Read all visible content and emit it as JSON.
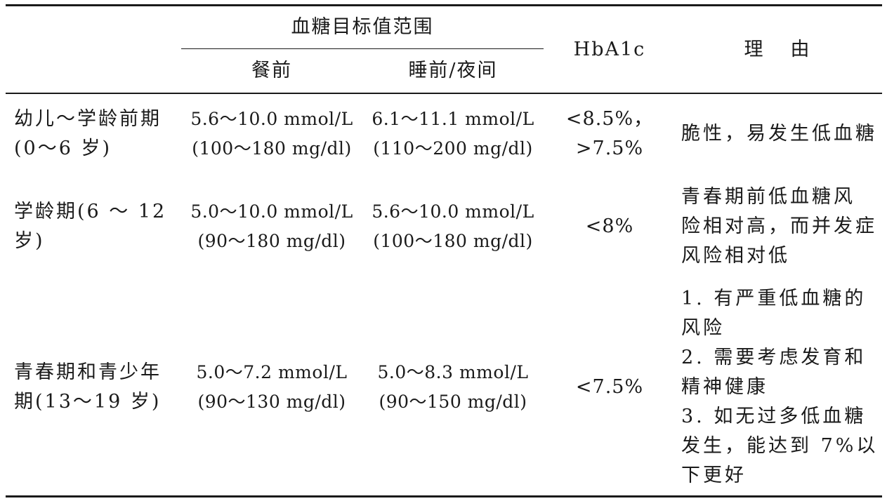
{
  "table": {
    "header": {
      "group_label": "血糖目标值范围",
      "before_meal": "餐前",
      "bedtime_night": "睡前/夜间",
      "hba1c": "HbA1c",
      "reason": "理　由"
    },
    "rows": [
      {
        "age_line1": "幼儿～学龄前期",
        "age_line2": "(0～6 岁)",
        "before_meal_line1": "5.6～10.0 mmol/L",
        "before_meal_line2": "(100～180 mg/dl)",
        "bedtime_line1": "6.1～11.1 mmol/L",
        "bedtime_line2": "(110～200 mg/dl)",
        "hba1c_line1": "<8.5%，",
        "hba1c_line2": ">7.5%",
        "reason_lines": [
          "脆性，易发生低血糖"
        ]
      },
      {
        "age_line1": "学龄期(6 ～ 12",
        "age_line2": "岁)",
        "before_meal_line1": "5.0～10.0 mmol/L",
        "before_meal_line2": "(90～180 mg/dl)",
        "bedtime_line1": "5.6～10.0 mmol/L",
        "bedtime_line2": "(100～180 mg/dl)",
        "hba1c_line1": "<8%",
        "reason_lines": [
          "青春期前低血糖风",
          "险相对高，而并发症",
          "风险相对低"
        ]
      },
      {
        "age_line1": "青春期和青少年",
        "age_line2": "期(13～19 岁)",
        "before_meal_line1": "5.0～7.2 mmol/L",
        "before_meal_line2": "(90～130 mg/dl)",
        "bedtime_line1": "5.0～8.3 mmol/L",
        "bedtime_line2": "(90～150 mg/dl)",
        "hba1c_line1": "<7.5%",
        "reason_lines": [
          "1. 有严重低血糖的",
          "风险",
          "2. 需要考虑发育和",
          "精神健康",
          "3. 如无过多低血糖",
          "发生，能达到 7%以",
          "下更好"
        ]
      }
    ]
  }
}
